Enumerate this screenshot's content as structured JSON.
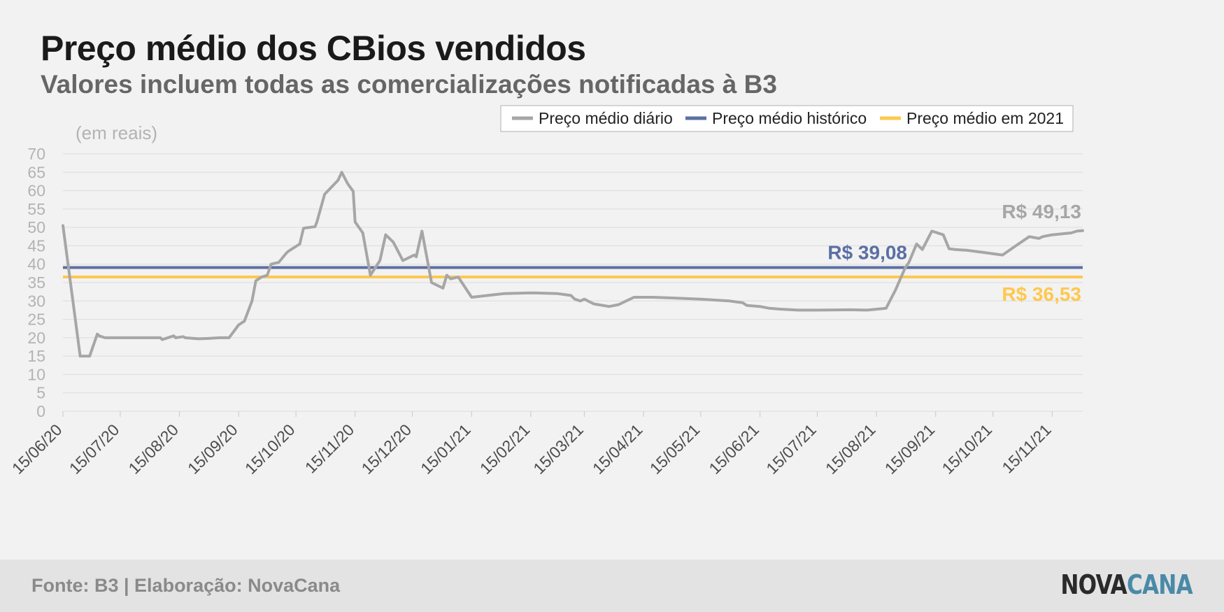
{
  "title": "Preço médio dos CBios vendidos",
  "subtitle": "Valores incluem todas as comercializações notificadas à B3",
  "footer": {
    "source": "Fonte: B3 | Elaboração: NovaCana",
    "logo_part1": "NOVA",
    "logo_part2": "CANA"
  },
  "chart_data": {
    "type": "line",
    "unit_label": "(em reais)",
    "ylim": [
      0,
      70
    ],
    "yticks": [
      0,
      5,
      10,
      15,
      20,
      25,
      30,
      35,
      40,
      45,
      50,
      55,
      60,
      65,
      70
    ],
    "xlim": [
      "2020-06-15",
      "2021-12-01"
    ],
    "xtick_labels": [
      "15/06/20",
      "15/07/20",
      "15/08/20",
      "15/09/20",
      "15/10/20",
      "15/11/20",
      "15/12/20",
      "15/01/21",
      "15/02/21",
      "15/03/21",
      "15/04/21",
      "15/05/21",
      "15/06/21",
      "15/07/21",
      "15/08/21",
      "15/09/21",
      "15/10/21",
      "15/11/21"
    ],
    "grid": true,
    "legend_position": "top-right",
    "colors": {
      "daily": "#a6a6a6",
      "historic": "#5b6fa3",
      "year2021": "#ffc84d",
      "grid": "#dcdcdc",
      "axis_text": "#b3b3b3"
    },
    "series": [
      {
        "name": "Preço médio diário",
        "end_label": "R$ 49,13",
        "x": [
          "2020-06-15",
          "2020-06-24",
          "2020-06-29",
          "2020-07-03",
          "2020-07-04",
          "2020-07-07",
          "2020-07-10",
          "2020-07-15",
          "2020-07-25",
          "2020-08-05",
          "2020-08-06",
          "2020-08-12",
          "2020-08-13",
          "2020-08-17",
          "2020-08-18",
          "2020-08-25",
          "2020-08-30",
          "2020-09-05",
          "2020-09-10",
          "2020-09-15",
          "2020-09-18",
          "2020-09-22",
          "2020-09-24",
          "2020-09-27",
          "2020-09-30",
          "2020-10-02",
          "2020-10-06",
          "2020-10-10",
          "2020-10-11",
          "2020-10-17",
          "2020-10-19",
          "2020-10-25",
          "2020-10-26",
          "2020-10-30",
          "2020-11-06",
          "2020-11-08",
          "2020-11-11",
          "2020-11-13",
          "2020-11-14",
          "2020-11-15",
          "2020-11-19",
          "2020-11-23",
          "2020-11-28",
          "2020-12-01",
          "2020-12-05",
          "2020-12-10",
          "2020-12-16",
          "2020-12-17",
          "2020-12-20",
          "2020-12-25",
          "2020-12-31",
          "2021-01-02",
          "2021-01-04",
          "2021-01-08",
          "2021-01-15",
          "2021-02-01",
          "2021-02-15",
          "2021-03-01",
          "2021-03-08",
          "2021-03-10",
          "2021-03-13",
          "2021-03-15",
          "2021-03-20",
          "2021-03-28",
          "2021-04-02",
          "2021-04-10",
          "2021-04-15",
          "2021-04-20",
          "2021-05-01",
          "2021-05-15",
          "2021-05-30",
          "2021-06-06",
          "2021-06-08",
          "2021-06-15",
          "2021-06-20",
          "2021-06-25",
          "2021-07-05",
          "2021-07-15",
          "2021-08-01",
          "2021-08-10",
          "2021-08-20",
          "2021-08-25",
          "2021-08-30",
          "2021-09-01",
          "2021-09-05",
          "2021-09-08",
          "2021-09-13",
          "2021-09-19",
          "2021-09-22",
          "2021-09-25",
          "2021-10-01",
          "2021-10-10",
          "2021-10-20",
          "2021-10-27",
          "2021-11-03",
          "2021-11-08",
          "2021-11-10",
          "2021-11-15",
          "2021-11-25",
          "2021-11-28",
          "2021-12-01"
        ],
        "values": [
          50.5,
          15.0,
          15.0,
          21.0,
          20.5,
          20.0,
          20.0,
          20.0,
          20.0,
          20.0,
          19.5,
          20.5,
          20.0,
          20.3,
          20.0,
          19.7,
          19.8,
          20.0,
          20.0,
          23.5,
          24.5,
          30.0,
          35.5,
          36.5,
          37.0,
          40.0,
          40.5,
          43.0,
          43.5,
          45.5,
          49.8,
          50.2,
          51.5,
          59.0,
          62.8,
          65.0,
          62.0,
          60.5,
          59.8,
          51.5,
          48.5,
          37.0,
          41.0,
          48.0,
          46.0,
          41.0,
          42.5,
          42.0,
          49.0,
          35.0,
          33.5,
          37.0,
          36.0,
          36.5,
          31.0,
          32.0,
          32.2,
          32.0,
          31.5,
          30.5,
          30.0,
          30.5,
          29.2,
          28.5,
          29.0,
          31.0,
          31.0,
          31.0,
          30.8,
          30.5,
          30.0,
          29.5,
          28.8,
          28.5,
          28.0,
          27.8,
          27.5,
          27.5,
          27.6,
          27.5,
          28.0,
          33.0,
          39.0,
          40.5,
          45.5,
          44.0,
          49.0,
          48.0,
          44.2,
          44.0,
          43.8,
          43.2,
          42.5,
          45.0,
          47.5,
          47.0,
          47.5,
          48.0,
          48.5,
          49.0,
          49.13
        ]
      },
      {
        "name": "Preço médio histórico",
        "value": 39.08,
        "label": "R$ 39,08"
      },
      {
        "name": "Preço médio em 2021",
        "value": 36.53,
        "label": "R$ 36,53"
      }
    ]
  }
}
